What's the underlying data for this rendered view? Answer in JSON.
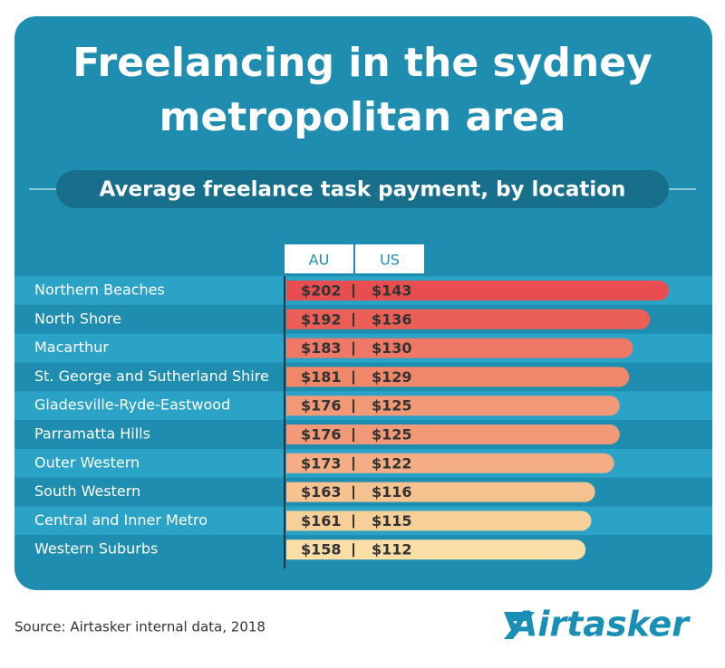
{
  "chart_data": {
    "type": "bar",
    "orientation": "horizontal",
    "title": "Freelancing in the sydney metropolitan area",
    "subtitle": "Average freelance task payment, by location",
    "categories": [
      "Northern Beaches",
      "North Shore",
      "Macarthur",
      "St. George and Sutherland Shire",
      "Gladesville-Ryde-Eastwood",
      "Parramatta Hills",
      "Outer Western",
      "South Western",
      "Central and Inner Metro",
      "Western Suburbs"
    ],
    "series": [
      {
        "name": "AU",
        "values": [
          202,
          192,
          183,
          181,
          176,
          176,
          173,
          163,
          161,
          158
        ],
        "value_labels": [
          "$202",
          "$192",
          "$183",
          "$181",
          "$176",
          "$176",
          "$173",
          "$163",
          "$161",
          "$158"
        ]
      },
      {
        "name": "US",
        "values": [
          143,
          136,
          130,
          129,
          125,
          125,
          122,
          116,
          115,
          112
        ],
        "value_labels": [
          "$143",
          "$136",
          "$130",
          "$129",
          "$125",
          "$125",
          "$122",
          "$116",
          "$115",
          "$112"
        ]
      }
    ],
    "colors": [
      "#e84e4f",
      "#ec5f56",
      "#ef7966",
      "#f08769",
      "#f29a77",
      "#f29a77",
      "#f4ad84",
      "#f6c28f",
      "#f7cf99",
      "#f9dfa6"
    ],
    "source": "Source: Airtasker internal data, 2018",
    "logo": "Airtasker"
  }
}
